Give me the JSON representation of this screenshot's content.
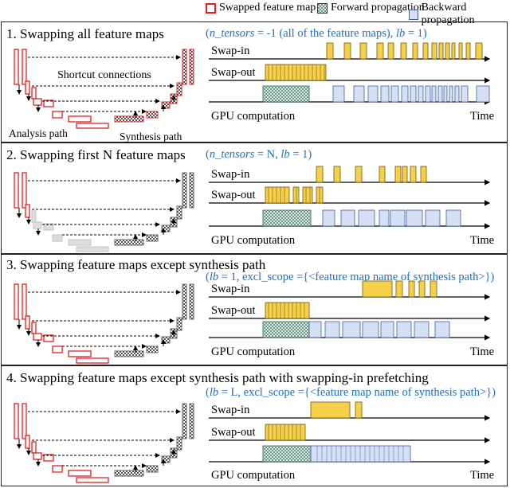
{
  "legend": [
    {
      "label": "Swapped feature map",
      "swatch": "red-outline"
    },
    {
      "label": "Forward propagation",
      "swatch": "crosshatch"
    },
    {
      "label": "Backward propagation",
      "swatch": "blue-fill"
    }
  ],
  "colors": {
    "swap_fill": "#f7d04a",
    "swap_stroke": "#6b5a10",
    "backward_fill": "#d6e0f3",
    "backward_stroke": "#3f5ea8",
    "feature_map_red": "#e02020",
    "param_text": "#1f6fc1"
  },
  "labels": {
    "swap_in": "Swap-in",
    "swap_out": "Swap-out",
    "gpu": "GPU computation",
    "time": "Time",
    "shortcut": "Shortcut connections",
    "analysis": "Analysis path",
    "synthesis": "Synthesis path"
  },
  "panels": [
    {
      "title": "1. Swapping all feature maps",
      "param_pre": "(",
      "param_italic": "n_tensors",
      "param_mid": " = -1 (all of the feature maps), ",
      "param_italic2": "lb",
      "param_post": " = 1)"
    },
    {
      "title": "2. Swapping first N feature maps",
      "param_pre": "(",
      "param_italic": "n_tensors",
      "param_mid": " = N, ",
      "param_italic2": "lb",
      "param_post": " = 1)"
    },
    {
      "title": "3. Swapping feature maps except synthesis path",
      "param_pre": "(",
      "param_italic": "lb",
      "param_mid": " = 1, excl_scope ={<feature map name of synthesis path>})",
      "param_italic2": "",
      "param_post": ""
    },
    {
      "title": "4. Swapping feature maps except synthesis path with swapping-in prefetching",
      "param_pre": "(",
      "param_italic": "lb",
      "param_mid": " = L, excl_scope ={<feature map name of synthesis path>})",
      "param_italic2": "",
      "param_post": ""
    }
  ]
}
